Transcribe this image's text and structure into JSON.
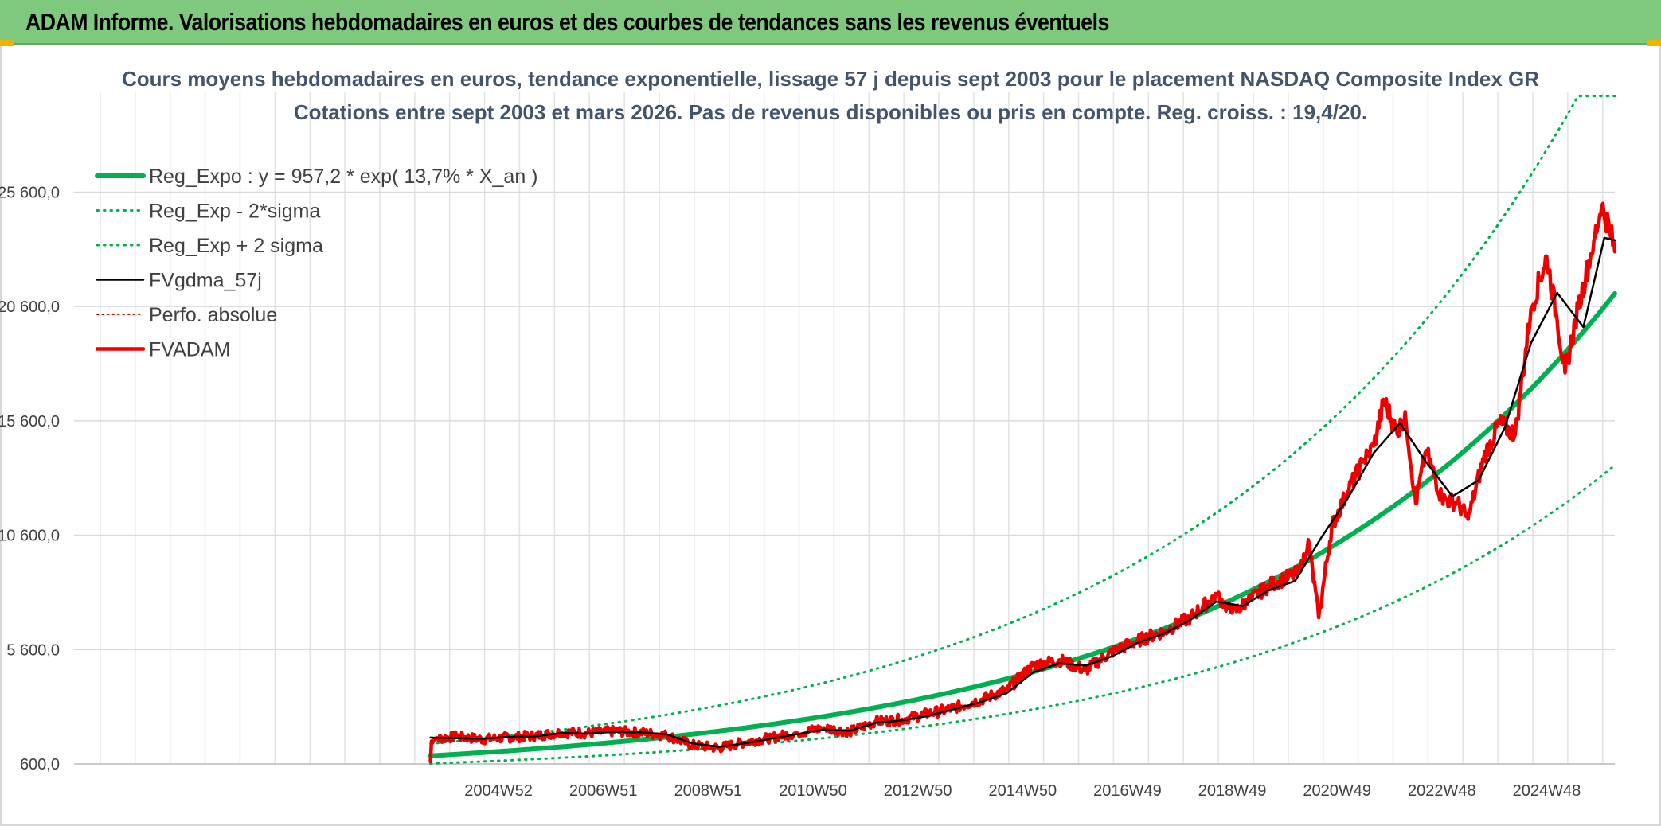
{
  "header": {
    "title": "ADAM Informe. Valorisations hebdomadaires en euros et des courbes de tendances sans les revenus éventuels"
  },
  "chart_data": {
    "type": "line",
    "title": "Cours moyens hebdomadaires en euros, tendance exponentielle, lissage 57 j depuis sept 2003 pour le placement NASDAQ Composite Index GR",
    "subtitle": "Cotations entre sept 2003 et mars 2026. Pas de revenus disponibles ou pris en compte. Reg. croiss. : 19,4/20.",
    "xlabel": "",
    "ylabel": "",
    "xlim": [
      -6.8,
      22.6
    ],
    "ylim": [
      600,
      30000
    ],
    "x_ticks": [
      {
        "x": 1.3,
        "label": "2004W52"
      },
      {
        "x": 3.3,
        "label": "2006W51"
      },
      {
        "x": 5.3,
        "label": "2008W51"
      },
      {
        "x": 7.3,
        "label": "2010W50"
      },
      {
        "x": 9.3,
        "label": "2012W50"
      },
      {
        "x": 11.3,
        "label": "2014W50"
      },
      {
        "x": 13.3,
        "label": "2016W49"
      },
      {
        "x": 15.3,
        "label": "2018W49"
      },
      {
        "x": 17.3,
        "label": "2020W49"
      },
      {
        "x": 19.3,
        "label": "2022W48"
      },
      {
        "x": 21.3,
        "label": "2024W48"
      }
    ],
    "y_ticks": [
      {
        "y": 600,
        "label": "600,0"
      },
      {
        "y": 5600,
        "label": "5 600,0"
      },
      {
        "y": 10600,
        "label": "10 600,0"
      },
      {
        "y": 15600,
        "label": "15 600,0"
      },
      {
        "y": 20600,
        "label": "20 600,0"
      },
      {
        "y": 25600,
        "label": "25 600,0"
      }
    ],
    "regression": {
      "a": 957.2,
      "rate": 0.137,
      "sigma_factor": 1.55,
      "x_start": 0,
      "x_end": 22.6
    },
    "series": [
      {
        "name": "Reg_Expo : y = 957,2 * exp( 13,7% *  X_an )",
        "color": "#00b050",
        "style": "solid",
        "width": 6
      },
      {
        "name": "Reg_Exp - 2*sigma",
        "color": "#00b050",
        "style": "dotted",
        "width": 3
      },
      {
        "name": "Reg_Exp + 2 sigma",
        "color": "#00b050",
        "style": "dotted",
        "width": 3
      },
      {
        "name": "FVgdma_57j",
        "color": "#000000",
        "style": "solid",
        "width": 2.5,
        "points": [
          [
            0,
            1750
          ],
          [
            0.5,
            1720
          ],
          [
            1,
            1700
          ],
          [
            1.5,
            1780
          ],
          [
            2,
            1800
          ],
          [
            2.5,
            1950
          ],
          [
            3,
            1930
          ],
          [
            3.5,
            2000
          ],
          [
            4,
            1980
          ],
          [
            4.5,
            1900
          ],
          [
            5,
            1500
          ],
          [
            5.5,
            1350
          ],
          [
            6,
            1500
          ],
          [
            6.5,
            1700
          ],
          [
            7,
            1900
          ],
          [
            7.5,
            2100
          ],
          [
            8,
            2050
          ],
          [
            8.5,
            2400
          ],
          [
            9,
            2500
          ],
          [
            9.5,
            2700
          ],
          [
            10,
            3000
          ],
          [
            10.5,
            3300
          ],
          [
            11,
            3700
          ],
          [
            11.5,
            4600
          ],
          [
            12,
            5000
          ],
          [
            12.5,
            4900
          ],
          [
            13,
            5300
          ],
          [
            13.5,
            5900
          ],
          [
            14,
            6300
          ],
          [
            14.5,
            6900
          ],
          [
            15,
            7700
          ],
          [
            15.5,
            7500
          ],
          [
            16,
            8200
          ],
          [
            16.5,
            8600
          ],
          [
            17,
            10500
          ],
          [
            17.5,
            12200
          ],
          [
            18,
            14200
          ],
          [
            18.5,
            15500
          ],
          [
            19,
            13800
          ],
          [
            19.5,
            12300
          ],
          [
            20,
            13000
          ],
          [
            20.5,
            15300
          ],
          [
            21,
            19000
          ],
          [
            21.5,
            21200
          ],
          [
            22,
            19700
          ],
          [
            22.4,
            23600
          ],
          [
            22.6,
            23500
          ]
        ]
      },
      {
        "name": "Perfo. absolue",
        "color": "#c00000",
        "style": "dotted",
        "width": 2
      },
      {
        "name": "FVADAM",
        "color": "#ee0000",
        "style": "solid",
        "width": 4.5,
        "points": [
          [
            0,
            700
          ],
          [
            0.02,
            1600
          ],
          [
            0.1,
            1700
          ],
          [
            0.5,
            1800
          ],
          [
            1,
            1680
          ],
          [
            1.5,
            1760
          ],
          [
            2,
            1830
          ],
          [
            2.5,
            1980
          ],
          [
            3,
            1940
          ],
          [
            3.5,
            2030
          ],
          [
            4,
            1970
          ],
          [
            4.5,
            1850
          ],
          [
            5,
            1420
          ],
          [
            5.5,
            1300
          ],
          [
            6,
            1550
          ],
          [
            6.5,
            1750
          ],
          [
            7,
            1950
          ],
          [
            7.5,
            2180
          ],
          [
            8,
            2000
          ],
          [
            8.5,
            2450
          ],
          [
            9,
            2550
          ],
          [
            9.5,
            2800
          ],
          [
            10,
            3050
          ],
          [
            10.5,
            3400
          ],
          [
            11,
            3850
          ],
          [
            11.5,
            4900
          ],
          [
            12,
            5150
          ],
          [
            12.5,
            4700
          ],
          [
            13,
            5500
          ],
          [
            13.5,
            6000
          ],
          [
            14,
            6400
          ],
          [
            14.5,
            7000
          ],
          [
            15,
            8000
          ],
          [
            15.3,
            7200
          ],
          [
            15.6,
            7700
          ],
          [
            16,
            8400
          ],
          [
            16.6,
            9000
          ],
          [
            16.75,
            10400
          ],
          [
            16.95,
            7000
          ],
          [
            17.2,
            11000
          ],
          [
            17.5,
            12500
          ],
          [
            17.8,
            13800
          ],
          [
            18,
            14500
          ],
          [
            18.2,
            16500
          ],
          [
            18.45,
            15000
          ],
          [
            18.6,
            16000
          ],
          [
            18.8,
            12000
          ],
          [
            19,
            14300
          ],
          [
            19.3,
            12200
          ],
          [
            19.6,
            12000
          ],
          [
            19.8,
            11300
          ],
          [
            20.1,
            14000
          ],
          [
            20.4,
            15500
          ],
          [
            20.7,
            15000
          ],
          [
            21,
            20500
          ],
          [
            21.3,
            22800
          ],
          [
            21.5,
            20000
          ],
          [
            21.65,
            17700
          ],
          [
            21.9,
            20500
          ],
          [
            22.2,
            23500
          ],
          [
            22.35,
            25000
          ],
          [
            22.5,
            24000
          ],
          [
            22.6,
            23000
          ]
        ]
      }
    ],
    "legend_position": "top-left"
  }
}
